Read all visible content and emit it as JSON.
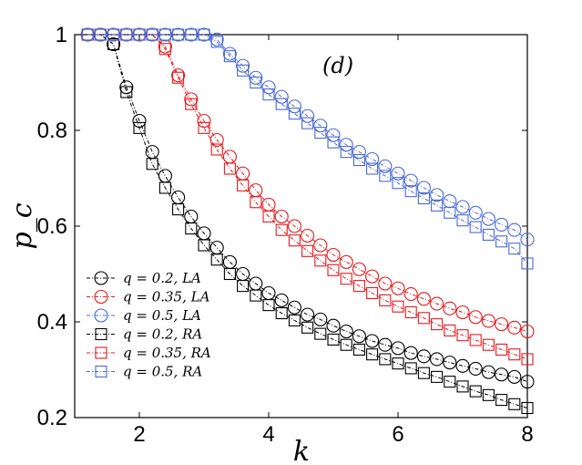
{
  "chart_data": {
    "type": "line",
    "title": "",
    "panel_label": "(d)",
    "xlabel": "k",
    "ylabel": "p_c",
    "xlim": [
      1,
      8
    ],
    "ylim": [
      0.2,
      1.0
    ],
    "xticks": [
      2,
      4,
      6,
      8
    ],
    "xtick_labels": [
      "2",
      "4",
      "6",
      "8"
    ],
    "yticks": [
      0.2,
      0.4,
      0.6,
      0.8,
      1.0
    ],
    "ytick_labels": [
      "0.2",
      "0.4",
      "0.6",
      "0.8",
      "1"
    ],
    "grid": false,
    "legend_position": "lower-left",
    "x": [
      1.2,
      1.4,
      1.6,
      1.8,
      2.0,
      2.2,
      2.4,
      2.6,
      2.8,
      3.0,
      3.2,
      3.4,
      3.6,
      3.8,
      4.0,
      4.2,
      4.4,
      4.6,
      4.8,
      5.0,
      5.2,
      5.4,
      5.6,
      5.8,
      6.0,
      6.2,
      6.4,
      6.6,
      6.8,
      7.0,
      7.2,
      7.4,
      7.6,
      7.8,
      8.0
    ],
    "series": [
      {
        "name": "q = 0.2, LA",
        "legend_label": "q = 0.2, LA",
        "color": "#000000",
        "marker": "circle",
        "values": [
          1.0,
          1.0,
          0.98,
          0.89,
          0.82,
          0.755,
          0.705,
          0.66,
          0.62,
          0.585,
          0.555,
          0.525,
          0.5,
          0.48,
          0.46,
          0.445,
          0.43,
          0.415,
          0.405,
          0.392,
          0.38,
          0.37,
          0.36,
          0.352,
          0.345,
          0.335,
          0.328,
          0.322,
          0.315,
          0.308,
          0.302,
          0.295,
          0.29,
          0.285,
          0.275
        ]
      },
      {
        "name": "q = 0.35, LA",
        "legend_label": "q = 0.35, LA",
        "color": "#e8191c",
        "marker": "circle",
        "values": [
          1.0,
          1.0,
          1.0,
          1.0,
          1.0,
          1.0,
          0.975,
          0.915,
          0.865,
          0.82,
          0.78,
          0.745,
          0.71,
          0.675,
          0.645,
          0.62,
          0.6,
          0.58,
          0.56,
          0.54,
          0.525,
          0.51,
          0.495,
          0.48,
          0.47,
          0.458,
          0.448,
          0.438,
          0.428,
          0.42,
          0.41,
          0.402,
          0.395,
          0.388,
          0.38
        ]
      },
      {
        "name": "q = 0.5, LA",
        "legend_label": "q = 0.5, LA",
        "color": "#4a6ad6",
        "marker": "circle",
        "values": [
          1.0,
          1.0,
          1.0,
          1.0,
          1.0,
          1.0,
          1.0,
          1.0,
          1.0,
          1.0,
          0.99,
          0.96,
          0.935,
          0.91,
          0.89,
          0.87,
          0.85,
          0.83,
          0.81,
          0.79,
          0.77,
          0.755,
          0.74,
          0.725,
          0.71,
          0.695,
          0.68,
          0.665,
          0.652,
          0.64,
          0.628,
          0.615,
          0.603,
          0.592,
          0.572
        ]
      },
      {
        "name": "q = 0.2, RA",
        "legend_label": "q = 0.2, RA",
        "color": "#000000",
        "marker": "square",
        "values": [
          1.0,
          1.0,
          0.98,
          0.88,
          0.805,
          0.73,
          0.68,
          0.635,
          0.595,
          0.56,
          0.53,
          0.5,
          0.475,
          0.455,
          0.435,
          0.418,
          0.403,
          0.388,
          0.375,
          0.363,
          0.352,
          0.342,
          0.332,
          0.322,
          0.313,
          0.303,
          0.293,
          0.285,
          0.275,
          0.265,
          0.255,
          0.247,
          0.237,
          0.228,
          0.22
        ]
      },
      {
        "name": "q = 0.35, RA",
        "legend_label": "q = 0.35, RA",
        "color": "#e8191c",
        "marker": "square",
        "values": [
          1.0,
          1.0,
          1.0,
          1.0,
          1.0,
          1.0,
          0.97,
          0.91,
          0.855,
          0.805,
          0.76,
          0.72,
          0.685,
          0.65,
          0.62,
          0.592,
          0.57,
          0.548,
          0.528,
          0.508,
          0.49,
          0.475,
          0.46,
          0.445,
          0.432,
          0.42,
          0.408,
          0.395,
          0.382,
          0.372,
          0.362,
          0.352,
          0.342,
          0.332,
          0.322
        ]
      },
      {
        "name": "q = 0.5, RA",
        "legend_label": "q = 0.5, RA",
        "color": "#4a6ad6",
        "marker": "square",
        "values": [
          1.0,
          1.0,
          1.0,
          1.0,
          1.0,
          1.0,
          1.0,
          1.0,
          1.0,
          1.0,
          0.985,
          0.955,
          0.925,
          0.9,
          0.875,
          0.855,
          0.835,
          0.815,
          0.795,
          0.775,
          0.755,
          0.738,
          0.72,
          0.705,
          0.69,
          0.673,
          0.658,
          0.643,
          0.628,
          0.612,
          0.598,
          0.582,
          0.568,
          0.553,
          0.522
        ]
      }
    ]
  }
}
